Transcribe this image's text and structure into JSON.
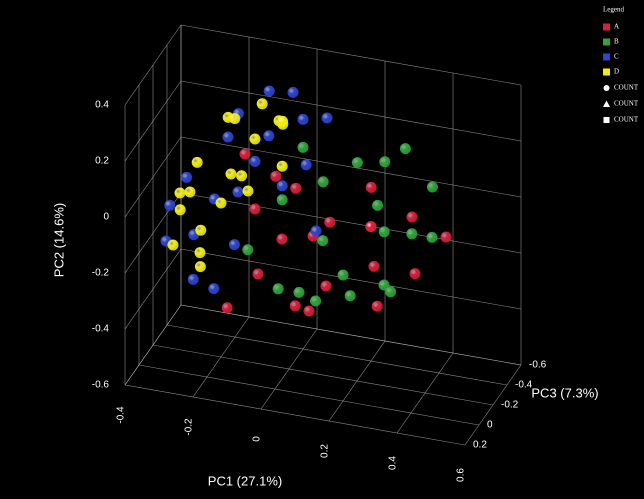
{
  "chart_data": {
    "type": "scatter3d",
    "xlabel": "PC1 (27.1%)",
    "ylabel": "PC2 (14.6%)",
    "zlabel": "PC3 (7.3%)",
    "xlim": [
      -0.4,
      0.6
    ],
    "ylim": [
      -0.6,
      0.4
    ],
    "zlim": [
      -0.6,
      0.2
    ],
    "xticks": [
      -0.4,
      -0.2,
      0,
      0.2,
      0.4,
      0.6
    ],
    "yticks": [
      -0.6,
      -0.4,
      -0.2,
      0,
      0.2,
      0.4
    ],
    "zticks": [
      -0.6,
      -0.4,
      -0.2,
      0,
      0.2
    ],
    "grid": true,
    "legend_title": "Legend",
    "shape_legend": [
      "COUNT",
      "COUNT",
      "COUNT"
    ],
    "series": [
      {
        "name": "A",
        "color": "#d81f3c",
        "x": [
          -0.15,
          -0.1,
          -0.05,
          0.0,
          0.05,
          0.08,
          0.12,
          0.15,
          0.2,
          0.25,
          0.3,
          0.35,
          0.4,
          0.02,
          0.1,
          -0.08,
          0.18,
          0.28,
          -0.12,
          0.22
        ],
        "y": [
          0.1,
          -0.05,
          -0.2,
          -0.1,
          -0.15,
          -0.25,
          -0.05,
          -0.2,
          -0.12,
          -0.18,
          -0.1,
          -0.22,
          -0.15,
          0.05,
          -0.3,
          0.0,
          -0.02,
          -0.28,
          -0.3,
          -0.08
        ],
        "z": [
          -0.3,
          -0.2,
          0.0,
          -0.1,
          -0.3,
          0.1,
          -0.2,
          0.0,
          -0.4,
          -0.2,
          -0.5,
          -0.3,
          -0.5,
          -0.2,
          0.0,
          -0.4,
          -0.5,
          -0.1,
          0.1,
          -0.3
        ]
      },
      {
        "name": "B",
        "color": "#2ea63a",
        "x": [
          -0.08,
          -0.02,
          0.03,
          0.08,
          0.12,
          0.16,
          0.2,
          0.24,
          0.28,
          0.32,
          0.36,
          0.4,
          0.05,
          0.14,
          0.22,
          0.3,
          0.0,
          0.18,
          0.26,
          0.34
        ],
        "y": [
          -0.12,
          0.0,
          -0.2,
          0.05,
          -0.08,
          0.1,
          -0.15,
          0.0,
          -0.05,
          -0.12,
          0.02,
          -0.08,
          -0.28,
          -0.22,
          0.08,
          -0.2,
          0.12,
          -0.3,
          0.1,
          -0.18
        ],
        "z": [
          0.0,
          -0.2,
          0.1,
          -0.3,
          -0.1,
          -0.4,
          0.0,
          -0.3,
          -0.2,
          -0.4,
          -0.5,
          -0.3,
          -0.1,
          0.1,
          -0.5,
          -0.1,
          -0.4,
          -0.2,
          -0.6,
          0.0
        ]
      },
      {
        "name": "C",
        "color": "#2f45d0",
        "x": [
          -0.33,
          -0.28,
          -0.26,
          -0.22,
          -0.19,
          -0.15,
          -0.12,
          -0.08,
          -0.05,
          0.0,
          0.03,
          -0.3,
          -0.24,
          -0.18,
          -0.14,
          -0.1,
          0.05,
          0.1,
          -0.2,
          -0.02
        ],
        "y": [
          -0.05,
          -0.18,
          0.1,
          -0.22,
          0.2,
          0.0,
          0.26,
          0.18,
          0.27,
          0.22,
          0.1,
          -0.1,
          -0.08,
          -0.28,
          -0.15,
          0.12,
          0.2,
          -0.05,
          0.15,
          0.05
        ],
        "z": [
          -0.1,
          -0.2,
          0.0,
          0.1,
          -0.4,
          -0.2,
          -0.5,
          -0.3,
          -0.5,
          -0.4,
          -0.3,
          0.1,
          -0.3,
          0.0,
          -0.1,
          -0.2,
          -0.5,
          -0.1,
          -0.3,
          -0.2
        ]
      },
      {
        "name": "D",
        "color": "#f2ee12",
        "x": [
          -0.32,
          -0.3,
          -0.28,
          -0.25,
          -0.22,
          -0.2,
          -0.18,
          -0.15,
          -0.12,
          -0.1,
          -0.08,
          -0.05,
          -0.3,
          -0.27,
          -0.24,
          -0.2,
          -0.16,
          -0.1,
          -0.06,
          -0.02
        ],
        "y": [
          -0.1,
          0.0,
          -0.2,
          0.05,
          0.18,
          -0.05,
          0.22,
          0.1,
          0.25,
          0.2,
          0.15,
          0.24,
          -0.15,
          0.08,
          -0.25,
          -0.12,
          0.02,
          0.05,
          0.2,
          0.12
        ],
        "z": [
          -0.2,
          -0.1,
          -0.3,
          0.0,
          -0.4,
          -0.2,
          -0.3,
          -0.1,
          -0.4,
          -0.2,
          -0.5,
          -0.3,
          0.0,
          -0.2,
          -0.1,
          0.1,
          -0.3,
          -0.1,
          -0.4,
          -0.2
        ]
      }
    ]
  }
}
